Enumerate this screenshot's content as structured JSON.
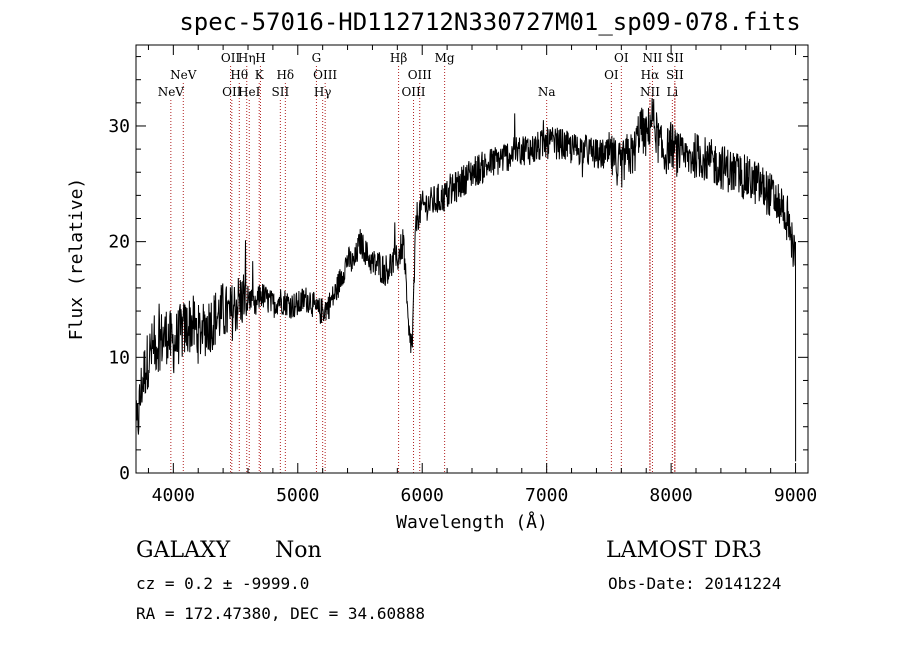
{
  "chart_data": {
    "type": "line",
    "title": "spec-57016-HD112712N330727M01_sp09-078.fits",
    "xlabel": "Wavelength (Å)",
    "ylabel": "Flux (relative)",
    "xlim": [
      3700,
      9100
    ],
    "ylim": [
      0,
      37
    ],
    "xticks": [
      4000,
      5000,
      6000,
      7000,
      8000,
      9000
    ],
    "xtick_labels": [
      "4000",
      "5000",
      "6000",
      "7000",
      "8000",
      "9000"
    ],
    "yticks": [
      0,
      10,
      20,
      30
    ],
    "ytick_labels": [
      "0",
      "10",
      "20",
      "30"
    ],
    "series": [
      {
        "name": "spectrum",
        "x": [
          3700,
          3750,
          3800,
          3850,
          3900,
          3950,
          4000,
          4050,
          4100,
          4150,
          4200,
          4250,
          4300,
          4350,
          4400,
          4450,
          4500,
          4550,
          4600,
          4650,
          4700,
          4750,
          4800,
          4850,
          4900,
          4950,
          5000,
          5050,
          5100,
          5150,
          5200,
          5250,
          5300,
          5350,
          5400,
          5450,
          5500,
          5550,
          5600,
          5650,
          5700,
          5750,
          5800,
          5850,
          5890,
          5920,
          5950,
          6000,
          6100,
          6200,
          6300,
          6400,
          6500,
          6600,
          6700,
          6800,
          6900,
          7000,
          7100,
          7200,
          7300,
          7400,
          7500,
          7550,
          7600,
          7650,
          7700,
          7750,
          7800,
          7850,
          7900,
          7950,
          8000,
          8050,
          8100,
          8200,
          8300,
          8400,
          8500,
          8600,
          8700,
          8800,
          8900,
          8950,
          9000
        ],
        "y": [
          3,
          8,
          10,
          11,
          11.5,
          12,
          11,
          12,
          12.5,
          13,
          12,
          12.5,
          13,
          13.5,
          14,
          13.5,
          14.5,
          15,
          15.5,
          14,
          15.5,
          15,
          14.5,
          15,
          14.8,
          14.5,
          14.5,
          15,
          15,
          14,
          14,
          14.5,
          15.5,
          17,
          18.5,
          18,
          20,
          19,
          18,
          18,
          17.5,
          18,
          18.5,
          20,
          12,
          11,
          22,
          23,
          23.5,
          24,
          25,
          26,
          26.5,
          27,
          27.5,
          28,
          28,
          28.5,
          28.5,
          28,
          28,
          27.5,
          27.5,
          27,
          26.5,
          27.5,
          27.5,
          30,
          29,
          31,
          28.5,
          27.5,
          28.5,
          27.5,
          27,
          27.5,
          27,
          26.5,
          26,
          25.5,
          25,
          24,
          23,
          21,
          18.5
        ]
      }
    ],
    "lines": [
      {
        "label": "NeV",
        "wavelength": 3980,
        "row": 3
      },
      {
        "label": "NeV",
        "wavelength": 4080,
        "row": 2
      },
      {
        "label": "OII",
        "wavelength": 4460,
        "row": 1
      },
      {
        "label": "Hθ",
        "wavelength": 4530,
        "row": 2
      },
      {
        "label": "OII",
        "wavelength": 4470,
        "row": 3
      },
      {
        "label": "Hη",
        "wavelength": 4590,
        "row": 1
      },
      {
        "label": "HeI",
        "wavelength": 4610,
        "row": 3
      },
      {
        "label": "H",
        "wavelength": 4700,
        "row": 1
      },
      {
        "label": "K",
        "wavelength": 4690,
        "row": 2
      },
      {
        "label": "Hδ",
        "wavelength": 4900,
        "row": 2
      },
      {
        "label": "SII",
        "wavelength": 4860,
        "row": 3
      },
      {
        "label": "G",
        "wavelength": 5150,
        "row": 1
      },
      {
        "label": "OIII",
        "wavelength": 5220,
        "row": 2
      },
      {
        "label": "Hγ",
        "wavelength": 5200,
        "row": 3
      },
      {
        "label": "Hβ",
        "wavelength": 5810,
        "row": 1
      },
      {
        "label": "OIII",
        "wavelength": 5980,
        "row": 2
      },
      {
        "label": "OIII",
        "wavelength": 5930,
        "row": 3
      },
      {
        "label": "Mg",
        "wavelength": 6180,
        "row": 1
      },
      {
        "label": "Na",
        "wavelength": 7000,
        "row": 3
      },
      {
        "label": "OI",
        "wavelength": 7600,
        "row": 1
      },
      {
        "label": "OI",
        "wavelength": 7520,
        "row": 2
      },
      {
        "label": "NII",
        "wavelength": 7850,
        "row": 1
      },
      {
        "label": "Hα",
        "wavelength": 7830,
        "row": 2
      },
      {
        "label": "NII",
        "wavelength": 7830,
        "row": 3
      },
      {
        "label": "SII",
        "wavelength": 8030,
        "row": 1
      },
      {
        "label": "SII",
        "wavelength": 8030,
        "row": 2
      },
      {
        "label": "Li",
        "wavelength": 8010,
        "row": 3
      }
    ]
  },
  "info": {
    "object_class": "GALAXY",
    "subclass": "Non",
    "survey": "LAMOST DR3",
    "cz": "cz = 0.2 ± -9999.0",
    "obs_date": "Obs-Date: 20141224",
    "coords": "RA = 172.47380, DEC =  34.60888"
  }
}
